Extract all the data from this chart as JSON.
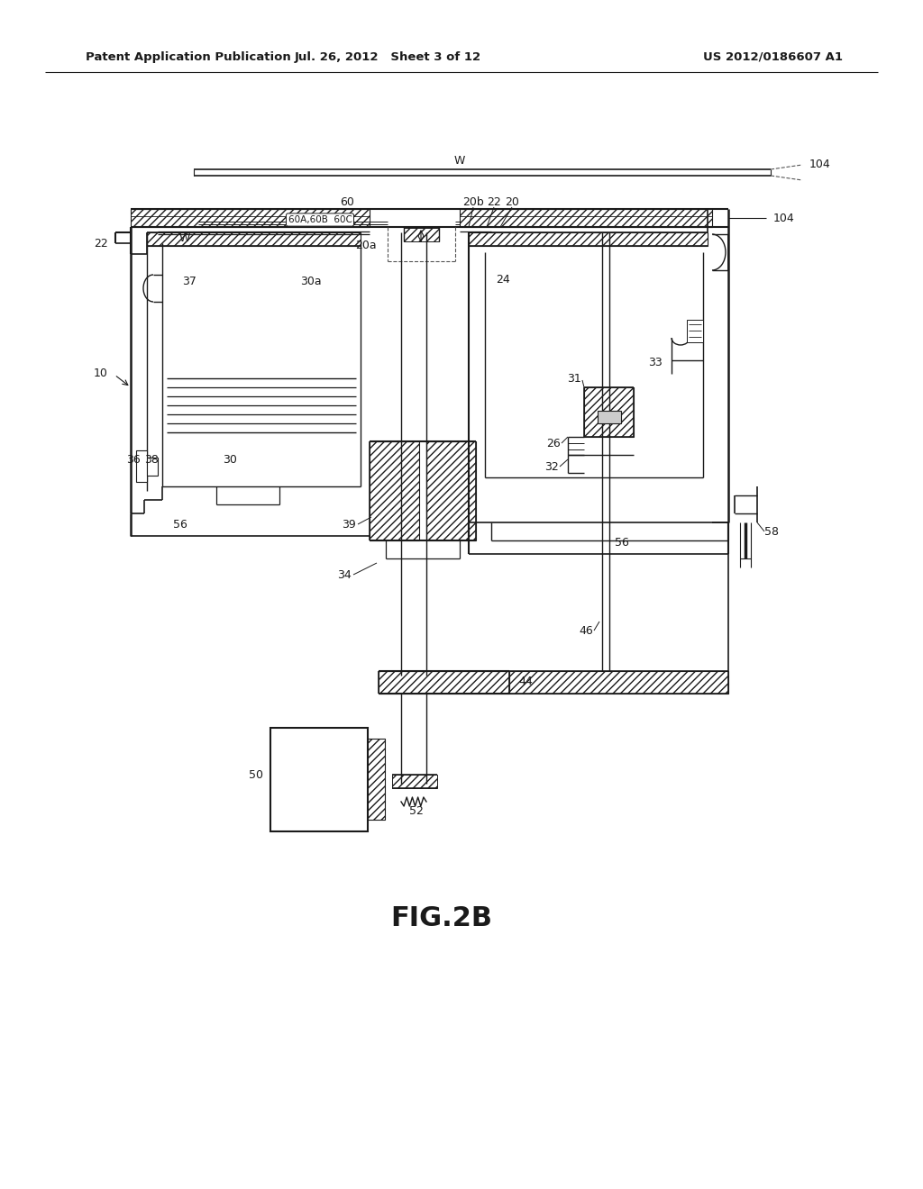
{
  "bg_color": "#ffffff",
  "line_color": "#1a1a1a",
  "header_left": "Patent Application Publication",
  "header_mid": "Jul. 26, 2012   Sheet 3 of 12",
  "header_right": "US 2012/0186607 A1",
  "caption": "FIG.2B"
}
